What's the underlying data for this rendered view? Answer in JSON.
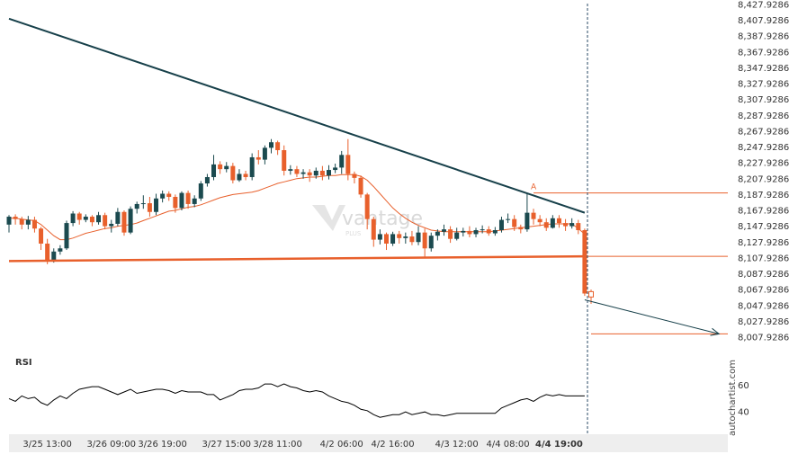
{
  "chart_data": {
    "type": "candlestick",
    "price_axis": {
      "labels": [
        "8,427.9286",
        "8,407.9286",
        "8,387.9286",
        "8,367.9286",
        "8,347.9286",
        "8,327.9286",
        "8,307.9286",
        "8,287.9286",
        "8,267.9286",
        "8,247.9286",
        "8,227.9286",
        "8,207.9286",
        "8,187.9286",
        "8,167.9286",
        "8,147.9286",
        "8,127.9286",
        "8,107.9286",
        "8,087.9286",
        "8,067.9286",
        "8,047.9286",
        "8,027.9286",
        "8,007.9286"
      ],
      "values": [
        8427.9286,
        8407.9286,
        8387.9286,
        8367.9286,
        8347.9286,
        8327.9286,
        8307.9286,
        8287.9286,
        8267.9286,
        8247.9286,
        8227.9286,
        8207.9286,
        8187.9286,
        8167.9286,
        8147.9286,
        8127.9286,
        8107.9286,
        8087.9286,
        8067.9286,
        8047.9286,
        8027.9286,
        8007.9286
      ]
    },
    "time_axis": {
      "labels": [
        "3/25 13:00",
        "3/26 09:00",
        "3/26 19:00",
        "3/27 15:00",
        "3/28 11:00",
        "4/2 06:00",
        "4/2 16:00",
        "4/3 12:00",
        "4/4 08:00",
        "4/4 19:00"
      ],
      "bar_index": [
        6,
        16,
        24,
        34,
        42,
        52,
        60,
        70,
        78,
        86
      ],
      "highlight": "4/4 19:00"
    },
    "candles": [
      [
        8150,
        8160,
        8140,
        8162
      ],
      [
        8160,
        8157,
        8150,
        8163
      ],
      [
        8157,
        8150,
        8144,
        8160
      ],
      [
        8150,
        8156,
        8144,
        8161
      ],
      [
        8156,
        8145,
        8140,
        8160
      ],
      [
        8145,
        8126,
        8118,
        8147
      ],
      [
        8126,
        8105,
        8100,
        8132
      ],
      [
        8105,
        8116,
        8102,
        8120
      ],
      [
        8116,
        8120,
        8112,
        8124
      ],
      [
        8120,
        8152,
        8118,
        8155
      ],
      [
        8152,
        8164,
        8148,
        8167
      ],
      [
        8164,
        8156,
        8150,
        8166
      ],
      [
        8156,
        8160,
        8153,
        8163
      ],
      [
        8160,
        8153,
        8148,
        8162
      ],
      [
        8153,
        8162,
        8150,
        8166
      ],
      [
        8162,
        8148,
        8144,
        8165
      ],
      [
        8148,
        8151,
        8140,
        8156
      ],
      [
        8151,
        8166,
        8148,
        8171
      ],
      [
        8166,
        8140,
        8136,
        8168
      ],
      [
        8140,
        8170,
        8138,
        8173
      ],
      [
        8170,
        8176,
        8164,
        8179
      ],
      [
        8176,
        8177,
        8170,
        8187
      ],
      [
        8177,
        8166,
        8160,
        8185
      ],
      [
        8166,
        8183,
        8162,
        8189
      ],
      [
        8183,
        8189,
        8178,
        8193
      ],
      [
        8189,
        8185,
        8180,
        8192
      ],
      [
        8185,
        8171,
        8165,
        8188
      ],
      [
        8171,
        8190,
        8168,
        8192
      ],
      [
        8190,
        8176,
        8170,
        8193
      ],
      [
        8176,
        8183,
        8172,
        8187
      ],
      [
        8183,
        8202,
        8180,
        8205
      ],
      [
        8202,
        8210,
        8198,
        8214
      ],
      [
        8210,
        8226,
        8206,
        8238
      ],
      [
        8226,
        8220,
        8214,
        8230
      ],
      [
        8220,
        8224,
        8216,
        8229
      ],
      [
        8224,
        8206,
        8202,
        8228
      ],
      [
        8206,
        8214,
        8204,
        8220
      ],
      [
        8214,
        8210,
        8206,
        8218
      ],
      [
        8210,
        8235,
        8206,
        8240
      ],
      [
        8235,
        8232,
        8226,
        8244
      ],
      [
        8232,
        8247,
        8226,
        8250
      ],
      [
        8247,
        8254,
        8240,
        8258
      ],
      [
        8254,
        8244,
        8238,
        8256
      ],
      [
        8244,
        8218,
        8212,
        8250
      ],
      [
        8218,
        8220,
        8213,
        8225
      ],
      [
        8220,
        8214,
        8210,
        8224
      ],
      [
        8214,
        8216,
        8208,
        8220
      ],
      [
        8216,
        8212,
        8204,
        8220
      ],
      [
        8212,
        8218,
        8208,
        8222
      ],
      [
        8218,
        8212,
        8206,
        8224
      ],
      [
        8212,
        8219,
        8207,
        8225
      ],
      [
        8219,
        8222,
        8215,
        8227
      ],
      [
        8222,
        8238,
        8214,
        8243
      ],
      [
        8238,
        8214,
        8206,
        8258
      ],
      [
        8214,
        8209,
        8202,
        8217
      ],
      [
        8209,
        8188,
        8184,
        8212
      ],
      [
        8188,
        8157,
        8144,
        8190
      ],
      [
        8157,
        8131,
        8122,
        8160
      ],
      [
        8131,
        8138,
        8125,
        8144
      ],
      [
        8138,
        8126,
        8118,
        8140
      ],
      [
        8126,
        8138,
        8123,
        8141
      ],
      [
        8138,
        8133,
        8126,
        8142
      ],
      [
        8133,
        8135,
        8126,
        8140
      ],
      [
        8135,
        8128,
        8124,
        8142
      ],
      [
        8128,
        8140,
        8124,
        8148
      ],
      [
        8140,
        8120,
        8108,
        8145
      ],
      [
        8120,
        8136,
        8116,
        8140
      ],
      [
        8136,
        8141,
        8130,
        8144
      ],
      [
        8141,
        8144,
        8136,
        8150
      ],
      [
        8144,
        8132,
        8127,
        8148
      ],
      [
        8132,
        8140,
        8130,
        8146
      ],
      [
        8140,
        8142,
        8135,
        8146
      ],
      [
        8142,
        8138,
        8134,
        8148
      ],
      [
        8138,
        8143,
        8134,
        8146
      ],
      [
        8143,
        8144,
        8139,
        8149
      ],
      [
        8144,
        8139,
        8136,
        8148
      ],
      [
        8139,
        8143,
        8136,
        8147
      ],
      [
        8143,
        8156,
        8140,
        8160
      ],
      [
        8156,
        8157,
        8152,
        8164
      ],
      [
        8157,
        8147,
        8142,
        8162
      ],
      [
        8147,
        8144,
        8139,
        8150
      ],
      [
        8144,
        8165,
        8141,
        8190
      ],
      [
        8165,
        8157,
        8150,
        8170
      ],
      [
        8157,
        8153,
        8148,
        8162
      ],
      [
        8153,
        8146,
        8142,
        8158
      ],
      [
        8146,
        8158,
        8145,
        8162
      ],
      [
        8158,
        8152,
        8146,
        8162
      ],
      [
        8152,
        8148,
        8142,
        8157
      ],
      [
        8148,
        8152,
        8145,
        8158
      ],
      [
        8152,
        8143,
        8138,
        8156
      ],
      [
        8143,
        8063,
        8060,
        8145
      ],
      [
        8063,
        8062,
        8050,
        8068
      ]
    ],
    "moving_average": [
      8158,
      8158,
      8157,
      8156,
      8155,
      8150,
      8143,
      8136,
      8131,
      8131,
      8133,
      8136,
      8139,
      8141,
      8143,
      8145,
      8146,
      8148,
      8149,
      8150,
      8152,
      8155,
      8158,
      8161,
      8164,
      8167,
      8168,
      8170,
      8172,
      8173,
      8175,
      8178,
      8181,
      8184,
      8186,
      8188,
      8189,
      8190,
      8191,
      8193,
      8196,
      8199,
      8202,
      8204,
      8206,
      8208,
      8209,
      8210,
      8210,
      8211,
      8212,
      8212,
      8213,
      8213,
      8213,
      8211,
      8206,
      8198,
      8189,
      8180,
      8171,
      8164,
      8158,
      8153,
      8149,
      8146,
      8143,
      8142,
      8141,
      8141,
      8141,
      8141,
      8141,
      8141,
      8141,
      8141,
      8142,
      8143,
      8144,
      8145,
      8146,
      8147,
      8148,
      8149,
      8150,
      8151,
      8151,
      8151,
      8151,
      8145,
      8138
    ],
    "rsi": {
      "label": "RSI",
      "ticks": [
        60,
        40
      ],
      "range": [
        26,
        86
      ],
      "values": [
        50,
        48,
        52,
        50,
        51,
        47,
        45,
        49,
        52,
        50,
        54,
        57,
        58,
        59,
        59,
        57,
        55,
        53,
        55,
        57,
        54,
        55,
        56,
        57,
        57,
        56,
        54,
        56,
        55,
        55,
        55,
        53,
        53,
        49,
        51,
        53,
        56,
        57,
        57,
        58,
        61,
        61,
        59,
        61,
        59,
        58,
        56,
        55,
        56,
        55,
        52,
        50,
        48,
        47,
        45,
        42,
        41,
        38,
        36,
        37,
        38,
        38,
        40,
        38,
        39,
        40,
        38,
        38,
        37,
        38,
        39,
        39,
        39,
        39,
        39,
        39,
        39,
        43,
        45,
        47,
        49,
        50,
        48,
        51,
        53,
        52,
        53,
        52,
        52,
        52,
        52
      ]
    },
    "trendlines": {
      "resistance": {
        "start": [
          0,
          8410
        ],
        "end": [
          90,
          8165
        ]
      },
      "support": {
        "start": [
          0,
          8104
        ],
        "end": [
          90,
          8110
        ]
      },
      "target_arrow": {
        "start": [
          90,
          8055
        ],
        "end": [
          111,
          8012
        ]
      }
    },
    "levels": [
      {
        "value": 8190,
        "point_label": "A"
      },
      {
        "value": 8110
      },
      {
        "value": 8012
      }
    ],
    "current_point": {
      "label": "B",
      "value": 8062
    },
    "colors": {
      "bull": "#1b4a4f",
      "bear": "#e8602c",
      "resistance": "#17404a",
      "support": "#e8602c",
      "moving_average": "#e8602c",
      "rsi": "#000000",
      "cursor": "#2a4a66",
      "axis_band": "#eeeeee",
      "watermark": "#d9d9d9"
    }
  },
  "watermark": {
    "text": "vantage",
    "subtext": "PLUS"
  },
  "branding": {
    "text": "autochartist.com"
  }
}
